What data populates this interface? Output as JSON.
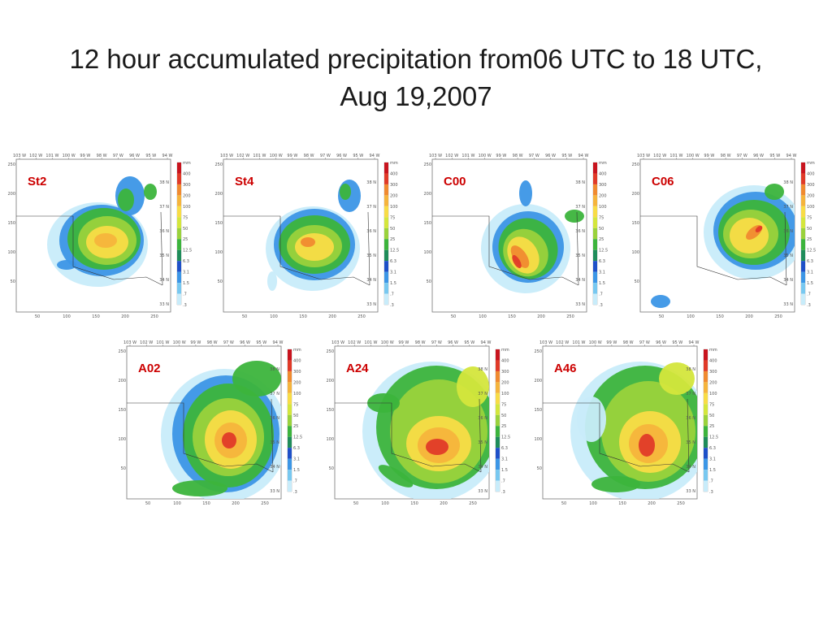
{
  "slide": {
    "title": "12 hour accumulated precipitation from06 UTC to 18 UTC, Aug 19,2007"
  },
  "axes": {
    "top_lon": [
      "103 W",
      "102 W",
      "101 W",
      "100 W",
      "99 W",
      "98 W",
      "97 W",
      "96 W",
      "95 W",
      "94 W"
    ],
    "right_lat": [
      "38 N",
      "37 N",
      "36 N",
      "35 N",
      "34 N",
      "33 N"
    ],
    "left_y": [
      "250",
      "200",
      "150",
      "100",
      "50"
    ],
    "bottom_x": [
      "50",
      "100",
      "150",
      "200",
      "250"
    ]
  },
  "colorbar": {
    "unit": "mm",
    "levels": [
      "400",
      "300",
      "200",
      "100",
      "75",
      "50",
      "25",
      "12.5",
      "6.3",
      "3.1",
      "1.5",
      ".7",
      ".3"
    ],
    "colors": [
      "#c8141e",
      "#e03a28",
      "#f08a30",
      "#f5b43c",
      "#f8dc46",
      "#d4e63c",
      "#9ad23c",
      "#3cb43c",
      "#1e8c5a",
      "#1e50c8",
      "#3c96e6",
      "#78c8f0",
      "#c8ecfa"
    ]
  },
  "panels": [
    {
      "id": "st2",
      "label": "St2"
    },
    {
      "id": "st4",
      "label": "St4"
    },
    {
      "id": "c00",
      "label": "C00"
    },
    {
      "id": "c06",
      "label": "C06"
    },
    {
      "id": "a02",
      "label": "A02"
    },
    {
      "id": "a24",
      "label": "A24"
    },
    {
      "id": "a46",
      "label": "A46"
    }
  ]
}
